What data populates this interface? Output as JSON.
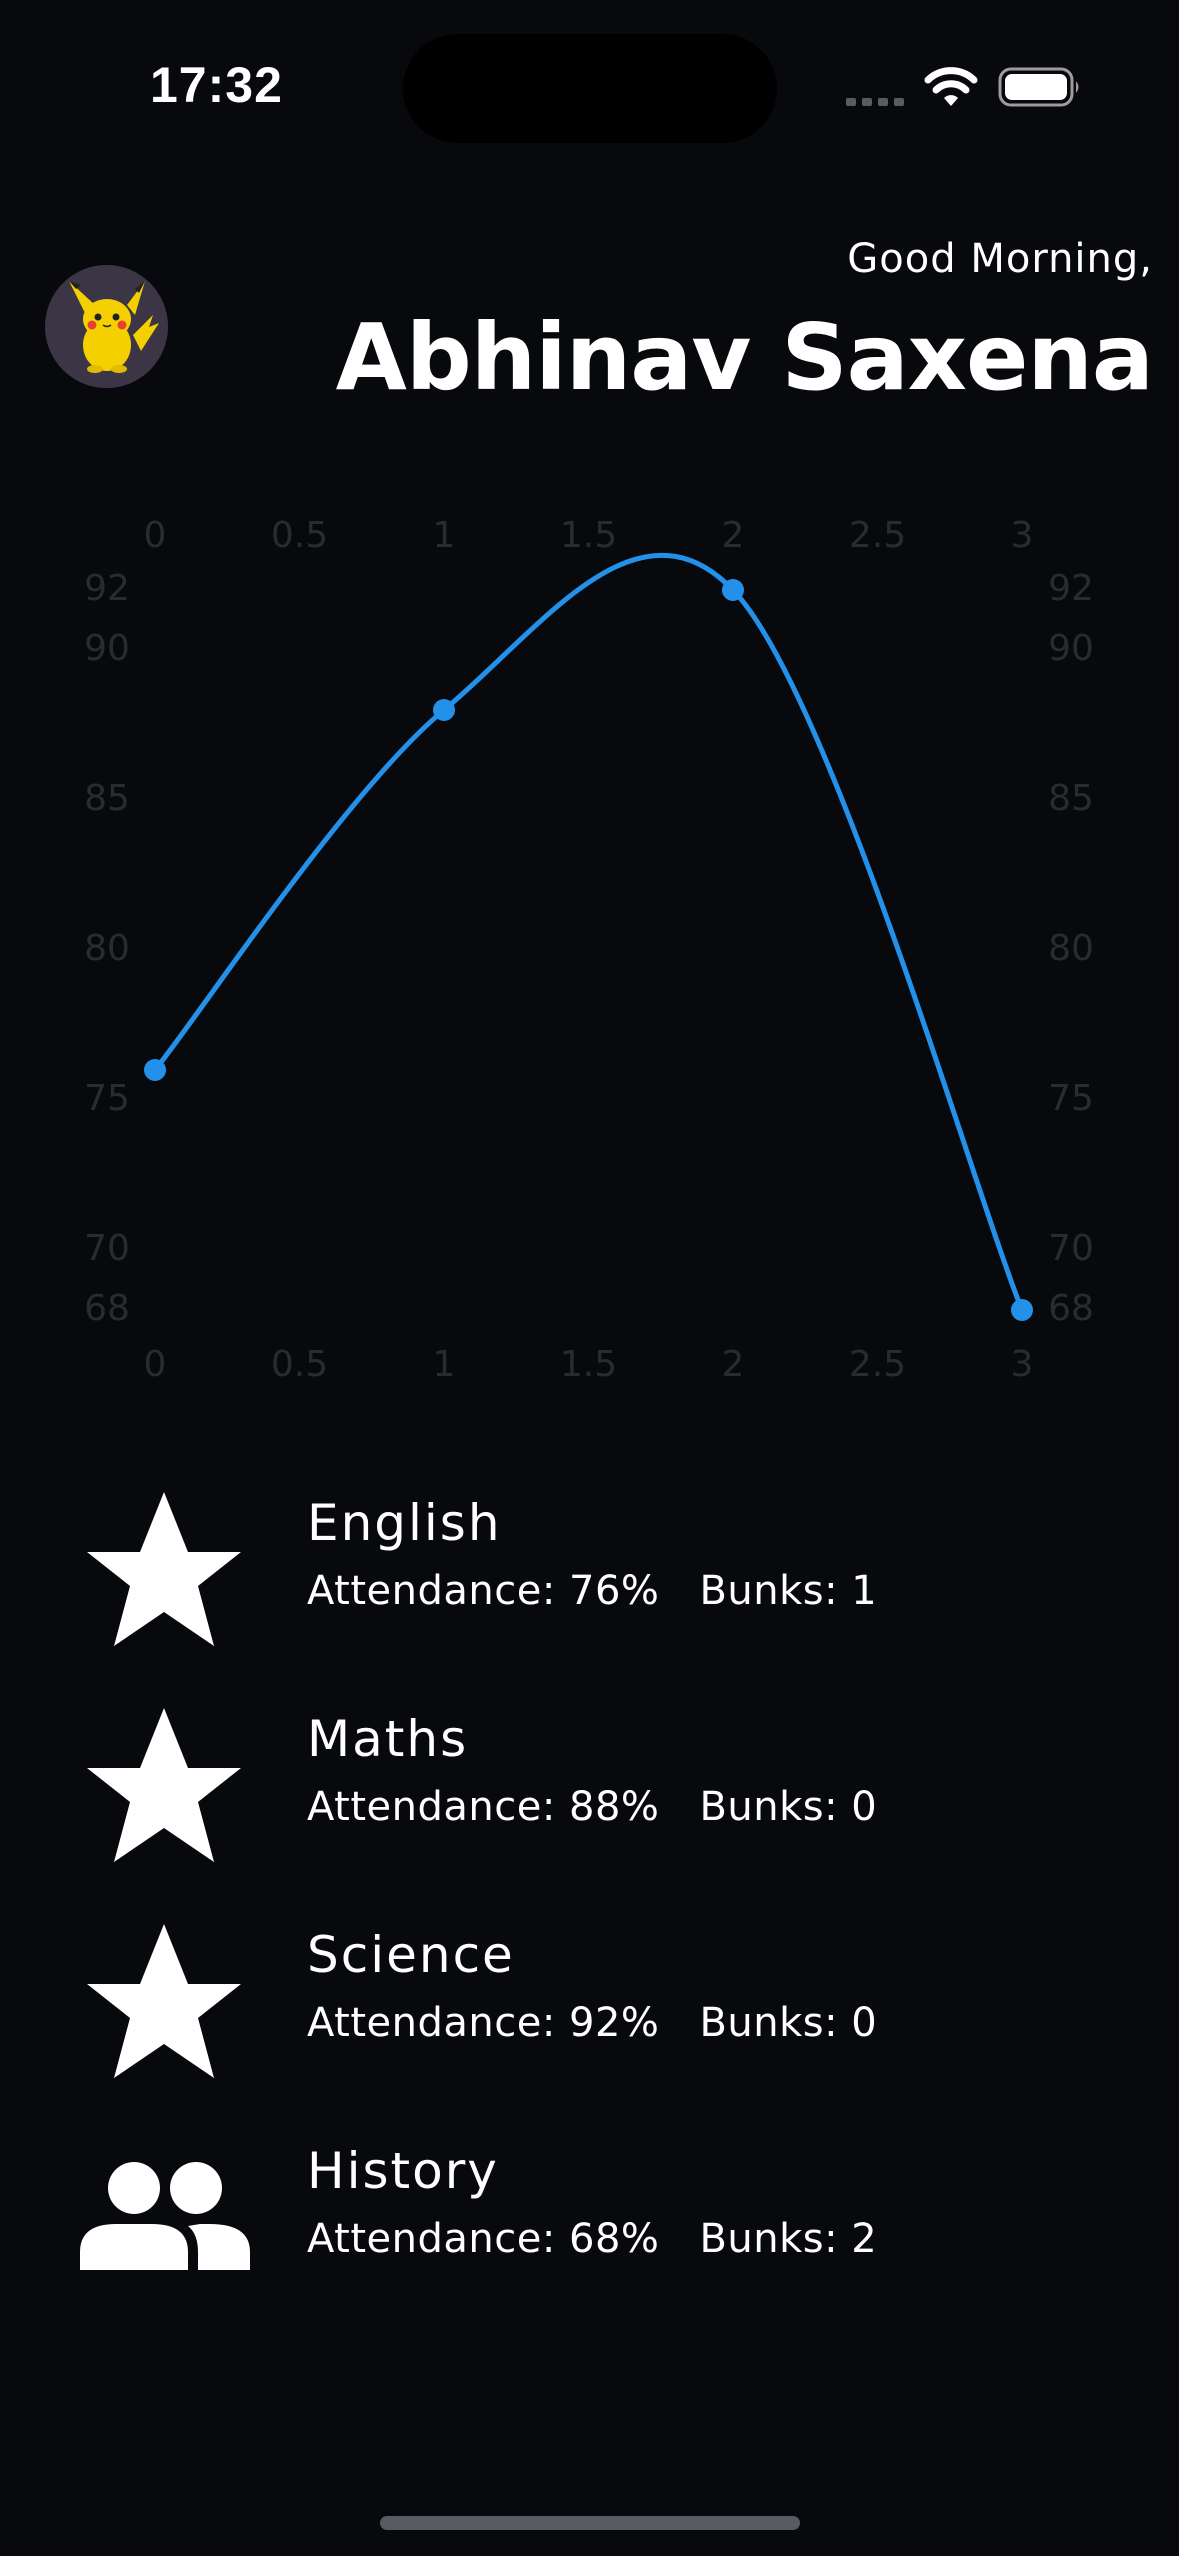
{
  "status_bar": {
    "time": "17:32"
  },
  "header": {
    "greeting": "Good Morning,",
    "name": "Abhinav Saxena"
  },
  "colors": {
    "background": "#08090d",
    "line": "#2391ea",
    "tick": "#2a2b30",
    "text": "#ffffff"
  },
  "chart_data": {
    "type": "line",
    "x": [
      0,
      1,
      2,
      3
    ],
    "series": [
      {
        "values": [
          76,
          88,
          92,
          68
        ]
      }
    ],
    "x_ticks": [
      "0",
      "0.5",
      "1",
      "1.5",
      "2",
      "2.5",
      "3"
    ],
    "x_tick_values": [
      0,
      0.5,
      1,
      1.5,
      2,
      2.5,
      3
    ],
    "y_ticks": [
      "92",
      "90",
      "85",
      "80",
      "75",
      "70",
      "68"
    ],
    "y_tick_values": [
      92,
      90,
      85,
      80,
      75,
      70,
      68
    ],
    "xlim": [
      0,
      3
    ],
    "ylim": [
      68,
      92
    ],
    "smooth": true,
    "grid": false,
    "axis_labels_on_all_sides": true
  },
  "subjects": [
    {
      "name": "English",
      "attendance": "Attendance: 76%",
      "bunks": "Bunks: 1",
      "icon": "star-icon"
    },
    {
      "name": "Maths",
      "attendance": "Attendance: 88%",
      "bunks": "Bunks: 0",
      "icon": "star-icon"
    },
    {
      "name": "Science",
      "attendance": "Attendance: 92%",
      "bunks": "Bunks: 0",
      "icon": "star-icon"
    },
    {
      "name": "History",
      "attendance": "Attendance: 68%",
      "bunks": "Bunks: 2",
      "icon": "people-icon"
    }
  ]
}
